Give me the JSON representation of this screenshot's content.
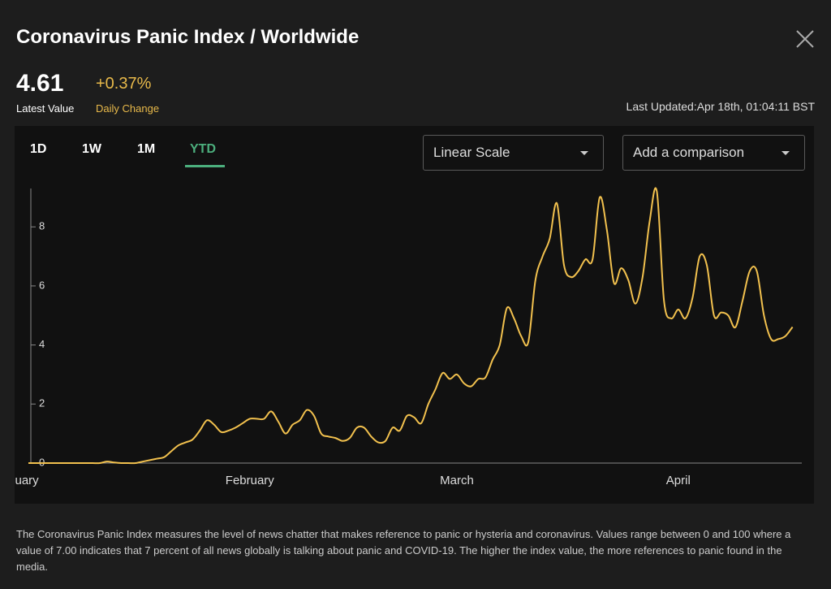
{
  "header": {
    "title": "Coronavirus Panic Index / Worldwide",
    "latest_value": 4.61,
    "latest_value_label": "Latest Value",
    "daily_change": "+0.37%",
    "daily_change_label": "Daily Change",
    "last_updated": "Last Updated:Apr 18th, 01:04:11 BST"
  },
  "controls": {
    "tabs": [
      "1D",
      "1W",
      "1M",
      "YTD"
    ],
    "scale": "Linear Scale",
    "comparison": "Add a comparison"
  },
  "chart_data": {
    "type": "line",
    "color": "#f2c14e",
    "categories": [
      "January",
      null,
      null,
      null,
      null,
      null,
      null,
      null,
      null,
      null,
      null,
      null,
      null,
      null,
      null,
      null,
      null,
      null,
      null,
      null,
      null,
      null,
      null,
      null,
      null,
      null,
      null,
      null,
      null,
      null,
      null,
      "February",
      null,
      null,
      null,
      null,
      null,
      null,
      null,
      null,
      null,
      null,
      null,
      null,
      null,
      null,
      null,
      null,
      null,
      null,
      null,
      null,
      null,
      null,
      null,
      null,
      null,
      null,
      null,
      null,
      "March",
      null,
      null,
      null,
      null,
      null,
      null,
      null,
      null,
      null,
      null,
      null,
      null,
      null,
      null,
      null,
      null,
      null,
      null,
      null,
      null,
      null,
      null,
      null,
      null,
      null,
      null,
      null,
      null,
      null,
      null,
      "April",
      null,
      null,
      null,
      null,
      null,
      null,
      null,
      null,
      null,
      null,
      null,
      null,
      null,
      null,
      null,
      null
    ],
    "values": [
      0,
      0,
      0,
      0,
      0,
      0,
      0,
      0,
      0,
      0,
      0,
      0.05,
      0.02,
      0,
      0,
      0,
      0.05,
      0.1,
      0.15,
      0.2,
      0.4,
      0.6,
      0.7,
      0.8,
      1.1,
      1.45,
      1.3,
      1.05,
      1.1,
      1.2,
      1.35,
      1.5,
      1.5,
      1.5,
      1.75,
      1.4,
      1,
      1.3,
      1.45,
      1.8,
      1.6,
      1,
      0.9,
      0.85,
      0.75,
      0.85,
      1.2,
      1.2,
      0.9,
      0.7,
      0.75,
      1.2,
      1.1,
      1.6,
      1.55,
      1.35,
      2,
      2.5,
      3.05,
      2.85,
      3,
      2.7,
      2.6,
      2.85,
      2.9,
      3.5,
      4,
      5.25,
      4.9,
      4.3,
      4.1,
      6.2,
      7,
      7.6,
      8.8,
      6.7,
      6.3,
      6.5,
      6.9,
      6.9,
      9,
      7.9,
      6.1,
      6.6,
      6.2,
      5.4,
      6.3,
      8.2,
      9.2,
      5.5,
      4.9,
      5.2,
      4.9,
      5.6,
      7,
      6.7,
      5,
      5.1,
      5,
      4.6,
      5.5,
      6.5,
      6.5,
      5,
      4.2,
      4.2,
      4.3,
      4.61
    ],
    "ylim": [
      0,
      9.3
    ],
    "yticks": [
      0,
      2,
      4,
      6,
      8
    ]
  },
  "description": "The Coronavirus Panic Index measures the level of news chatter that makes reference to panic or hysteria and coronavirus. Values range between 0 and 100 where a value of 7.00 indicates that 7 percent of all news globally is talking about panic and COVID-19. The higher the index value, the more references to panic found in the media."
}
